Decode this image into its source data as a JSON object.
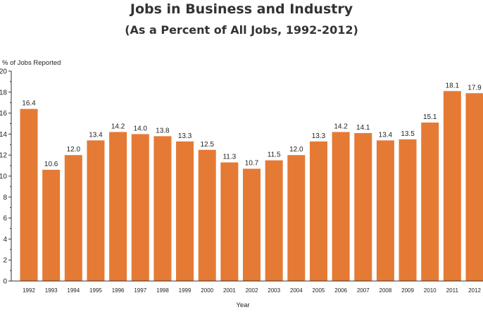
{
  "chart_data": {
    "type": "bar",
    "title": "Jobs in Business and Industry",
    "subtitle": "(As a Percent of All Jobs, 1992-2012)",
    "xlabel": "Year",
    "ylabel": "% of Jobs Reported",
    "ylim": [
      0,
      20
    ],
    "yticks": [
      0,
      2,
      4,
      6,
      8,
      10,
      12,
      14,
      16,
      18,
      20
    ],
    "categories": [
      "1992",
      "1993",
      "1994",
      "1995",
      "1996",
      "1997",
      "1998",
      "1999",
      "2000",
      "2001",
      "2002",
      "2003",
      "2004",
      "2005",
      "2006",
      "2007",
      "2008",
      "2009",
      "2010",
      "2011",
      "2012"
    ],
    "values": [
      16.4,
      10.6,
      12.0,
      13.4,
      14.2,
      14.0,
      13.8,
      13.3,
      12.5,
      11.3,
      10.7,
      11.5,
      12.0,
      13.3,
      14.2,
      14.1,
      13.4,
      13.5,
      15.1,
      18.1,
      17.9
    ],
    "value_labels": [
      "16.4",
      "10.6",
      "12.0",
      "13.4",
      "14.2",
      "14.0",
      "13.8",
      "13.3",
      "12.5",
      "11.3",
      "10.7",
      "11.5",
      "12.0",
      "13.3",
      "14.2",
      "14.1",
      "13.4",
      "13.5",
      "15.1",
      "18.1",
      "17.9"
    ],
    "bar_color": "#E57A35",
    "grid": false
  }
}
